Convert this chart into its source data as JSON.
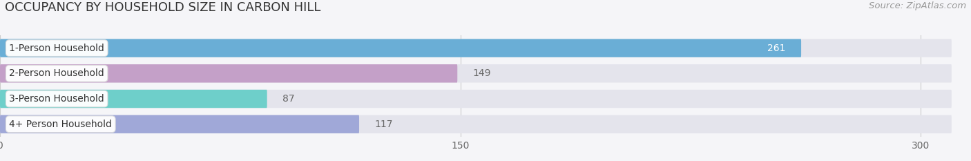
{
  "title": "OCCUPANCY BY HOUSEHOLD SIZE IN CARBON HILL",
  "source": "Source: ZipAtlas.com",
  "categories": [
    "1-Person Household",
    "2-Person Household",
    "3-Person Household",
    "4+ Person Household"
  ],
  "values": [
    261,
    149,
    87,
    117
  ],
  "bar_colors": [
    "#6aaed6",
    "#c4a0c8",
    "#6ecfca",
    "#a0a8d8"
  ],
  "bar_bg_color": "#e4e4ec",
  "xlim_max": 310,
  "xticks": [
    0,
    150,
    300
  ],
  "label_inside_color": "#ffffff",
  "label_outside_color": "#666666",
  "label_inside_threshold": 250,
  "title_fontsize": 13,
  "source_fontsize": 9.5,
  "tick_fontsize": 10,
  "bar_label_fontsize": 10,
  "category_fontsize": 10,
  "bar_height": 0.72,
  "background_color": "#f5f5f8",
  "bar_gap": 0.28
}
